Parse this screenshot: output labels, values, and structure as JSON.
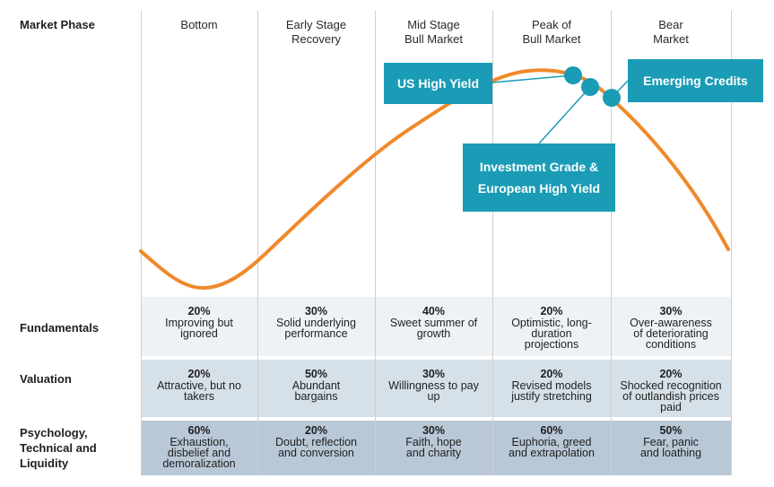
{
  "header": {
    "row_label": "Market Phase"
  },
  "phases": [
    {
      "line1": "Bottom",
      "line2": ""
    },
    {
      "line1": "Early Stage",
      "line2": "Recovery"
    },
    {
      "line1": "Mid Stage",
      "line2": "Bull Market"
    },
    {
      "line1": "Peak of",
      "line2": "Bull Market"
    },
    {
      "line1": "Bear",
      "line2": "Market"
    }
  ],
  "callouts": {
    "us_high_yield": "US High Yield",
    "emerging_credits": "Emerging Credits",
    "ig_line1": "Investment Grade &",
    "ig_line2": "European High Yield"
  },
  "rows": [
    {
      "label": [
        "Fundamentals"
      ],
      "cells": [
        {
          "pct": "20%",
          "lines": [
            "Improving but",
            "ignored"
          ]
        },
        {
          "pct": "30%",
          "lines": [
            "Solid underlying",
            "performance"
          ]
        },
        {
          "pct": "40%",
          "lines": [
            "Sweet summer of",
            "growth"
          ]
        },
        {
          "pct": "20%",
          "lines": [
            "Optimistic, long-",
            "duration",
            "projections"
          ]
        },
        {
          "pct": "30%",
          "lines": [
            "Over-awareness",
            "of deteriorating",
            "conditions"
          ]
        }
      ]
    },
    {
      "label": [
        "Valuation"
      ],
      "cells": [
        {
          "pct": "20%",
          "lines": [
            "Attractive, but no",
            "takers"
          ]
        },
        {
          "pct": "50%",
          "lines": [
            "Abundant",
            "bargains"
          ]
        },
        {
          "pct": "30%",
          "lines": [
            "Willingness to pay",
            "up"
          ]
        },
        {
          "pct": "20%",
          "lines": [
            "Revised models",
            "justify stretching"
          ]
        },
        {
          "pct": "20%",
          "lines": [
            "Shocked recognition",
            "of outlandish prices",
            "paid"
          ]
        }
      ]
    },
    {
      "label": [
        "Psychology,",
        "Technical and",
        "Liquidity"
      ],
      "cells": [
        {
          "pct": "60%",
          "lines": [
            "Exhaustion,",
            "disbelief and",
            "demoralization"
          ]
        },
        {
          "pct": "20%",
          "lines": [
            "Doubt, reflection",
            "and conversion"
          ]
        },
        {
          "pct": "30%",
          "lines": [
            "Faith, hope",
            "and charity"
          ]
        },
        {
          "pct": "60%",
          "lines": [
            "Euphoria, greed",
            "and extrapolation"
          ]
        },
        {
          "pct": "50%",
          "lines": [
            "Fear, panic",
            "and loathing"
          ]
        }
      ]
    }
  ],
  "colors": {
    "curve": "#f0892a",
    "callout": "#1a9cb6",
    "band_fundamentals": "#eef2f5",
    "band_valuation": "#d6e0e8",
    "band_psychology": "#b9c8d6"
  }
}
